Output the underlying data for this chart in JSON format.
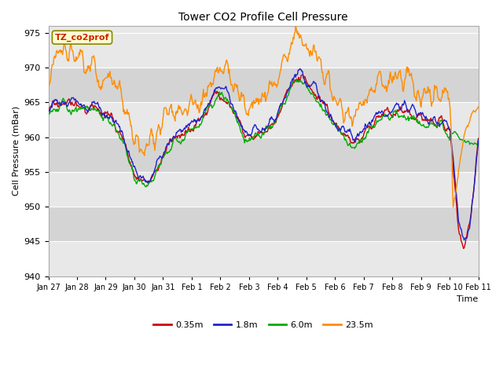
{
  "title": "Tower CO2 Profile Cell Pressure",
  "ylabel": "Cell Pressure (mBar)",
  "xlabel": "Time",
  "ylim": [
    940,
    976
  ],
  "yticks": [
    940,
    945,
    950,
    955,
    960,
    965,
    970,
    975
  ],
  "bg_color": "#ffffff",
  "plot_bg": "#e8e8e8",
  "band_light": "#e8e8e8",
  "band_dark": "#d4d4d4",
  "legend_entries": [
    "0.35m",
    "1.8m",
    "6.0m",
    "23.5m"
  ],
  "legend_colors": [
    "#cc0000",
    "#2222cc",
    "#00aa00",
    "#ff8c00"
  ],
  "annotation_text": "TZ_co2prof",
  "annotation_bg": "#ffffcc",
  "annotation_border": "#cc2200",
  "grid_color": "#c8c8c8",
  "line_width": 1.0,
  "xtick_labels": [
    "Jan 27",
    "Jan 28",
    "Jan 29",
    "Jan 30",
    "Jan 31",
    "Feb 1",
    "Feb 2",
    "Feb 3",
    "Feb 4",
    "Feb 5",
    "Feb 6",
    "Feb 7",
    "Feb 8",
    "Feb 9",
    "Feb 10",
    "Feb 11"
  ],
  "n_points": 700
}
